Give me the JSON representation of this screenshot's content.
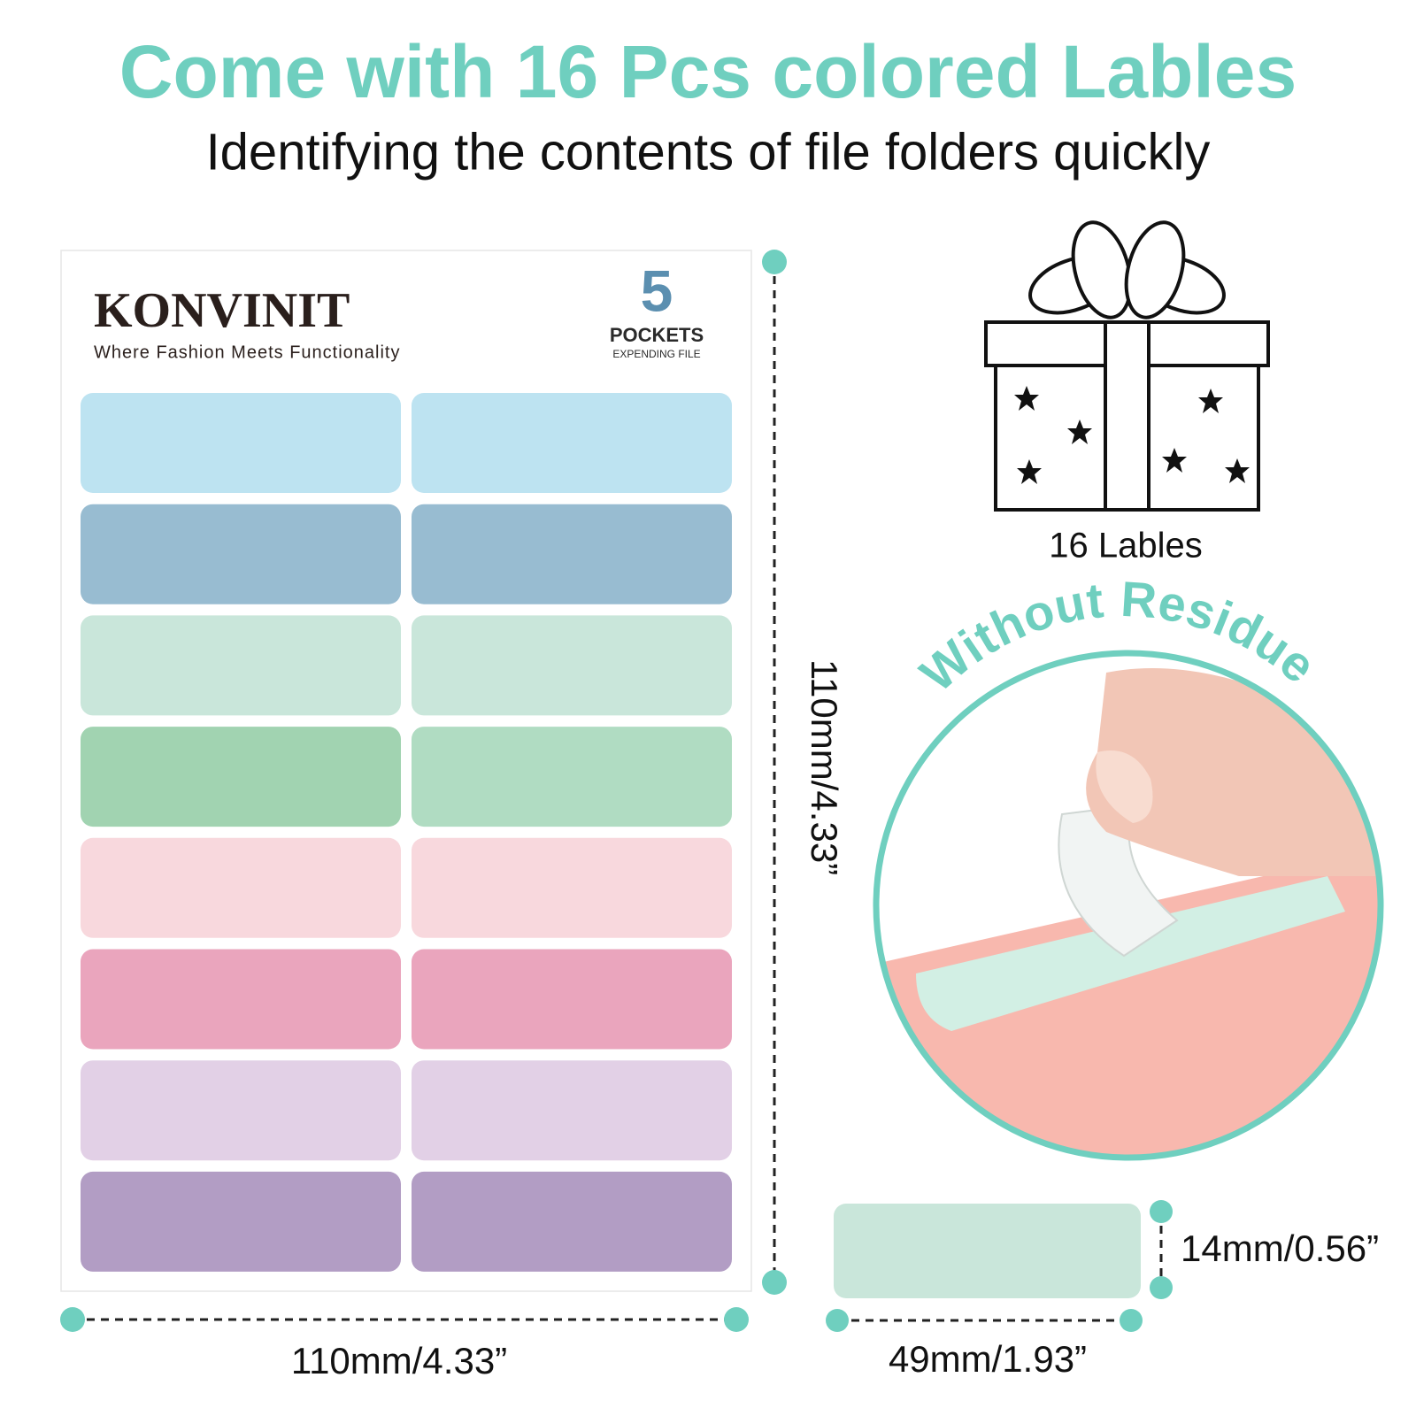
{
  "header": {
    "title": "Come with 16 Pcs colored Lables",
    "subtitle": "Identifying the contents of file folders quickly"
  },
  "sheet": {
    "brand": "KONVINIT",
    "tagline": "Where Fashion Meets Functionality",
    "badge_number": "5",
    "badge_title": "POCKETS",
    "badge_subtitle": "EXPENDING FILE",
    "labels": [
      [
        "#bde3f1",
        "#bde3f1"
      ],
      [
        "#98bcd1",
        "#98bcd1"
      ],
      [
        "#c9e6da",
        "#c9e6da"
      ],
      [
        "#a1d3b1",
        "#b0dcc2"
      ],
      [
        "#f8d8dd",
        "#f8d8dd"
      ],
      [
        "#eaa5bd",
        "#eaa5bd"
      ],
      [
        "#e2d0e6",
        "#e2d0e6"
      ],
      [
        "#b29dc4",
        "#b29dc4"
      ]
    ]
  },
  "gift": {
    "caption": "16 Lables"
  },
  "residue": {
    "caption": "Without Residue"
  },
  "dimensions": {
    "sheet_height": "110mm/4.33”",
    "sheet_width": "110mm/4.33”",
    "label_height": "14mm/0.56”",
    "label_width": "49mm/1.93”"
  }
}
